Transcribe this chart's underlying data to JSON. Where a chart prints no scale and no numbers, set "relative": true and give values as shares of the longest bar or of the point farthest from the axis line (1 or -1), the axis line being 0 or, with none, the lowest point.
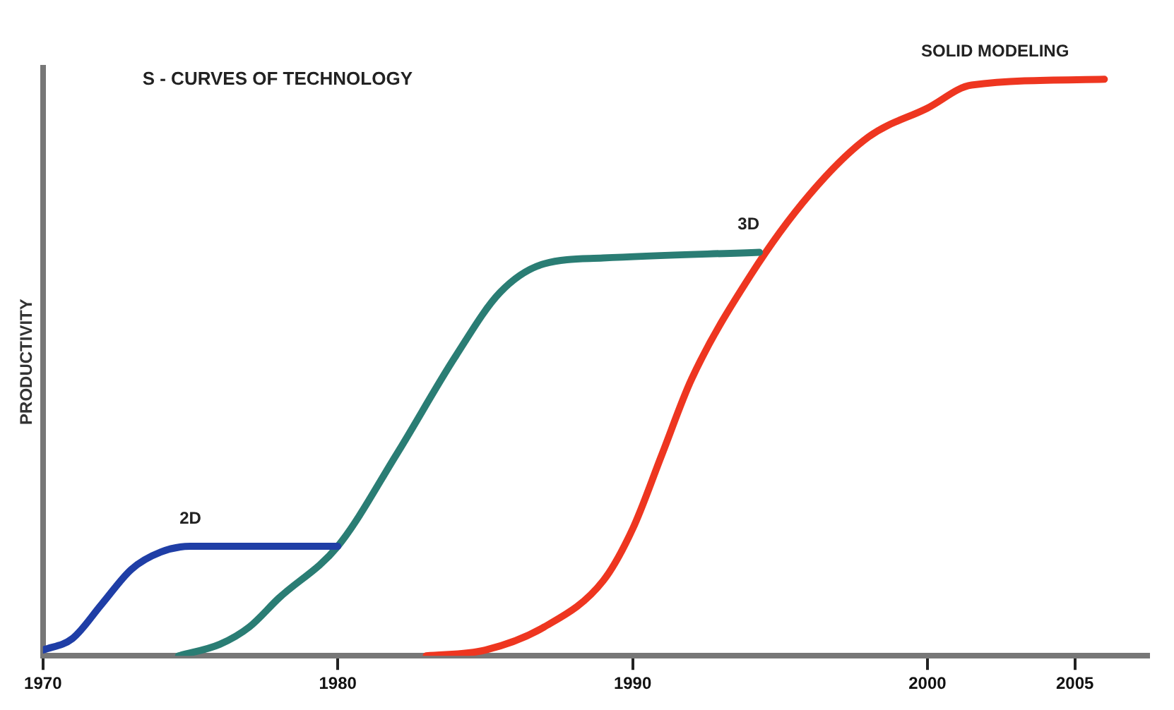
{
  "chart_data": {
    "type": "line",
    "title": "S - CURVES OF TECHNOLOGY",
    "ylabel": "PRODUCTIVITY",
    "relative": true,
    "xlim": [
      1970,
      2007.5
    ],
    "xticks": [
      1970,
      1980,
      1990,
      2000,
      2005
    ],
    "grid": false,
    "legend": false,
    "marker": "none",
    "line_style": "solid",
    "series": [
      {
        "name": "2D",
        "color": "#1f3ea6",
        "x": [
          1970,
          1971,
          1972,
          1973,
          1974,
          1975,
          1980
        ],
        "values": [
          0.01,
          0.03,
          0.09,
          0.15,
          0.18,
          0.19,
          0.19
        ]
      },
      {
        "name": "3D",
        "color": "#2a7d74",
        "x": [
          1974.6,
          1976,
          1977,
          1978,
          1980,
          1982,
          1984,
          1985.5,
          1987,
          1989,
          1994.3
        ],
        "values": [
          0,
          0.02,
          0.05,
          0.1,
          0.19,
          0.35,
          0.52,
          0.63,
          0.68,
          0.69,
          0.7
        ]
      },
      {
        "name": "SOLID MODELING",
        "color": "#ee3620",
        "x": [
          1983,
          1985,
          1987,
          1989,
          1990,
          1991,
          1992,
          1994,
          1996,
          1998,
          2000,
          2001.5,
          2006
        ],
        "values": [
          0,
          0.01,
          0.05,
          0.13,
          0.22,
          0.35,
          0.48,
          0.66,
          0.8,
          0.9,
          0.95,
          0.99,
          1
        ]
      }
    ]
  }
}
